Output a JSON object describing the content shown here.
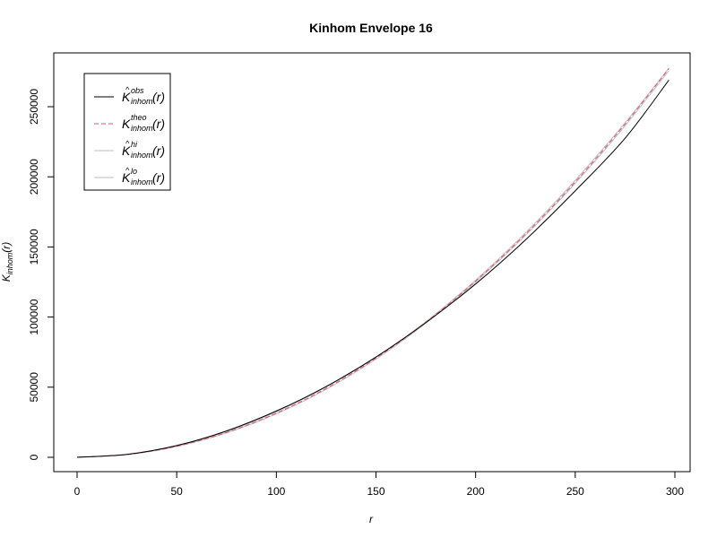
{
  "chart_data": {
    "type": "line",
    "title": "Kinhom Envelope 16",
    "xlabel": "r",
    "ylabel": {
      "main": "K",
      "sub": "inhom",
      "arg": "(r)"
    },
    "xlim": [
      0,
      300
    ],
    "ylim": [
      0,
      280000
    ],
    "x_ticks": [
      0,
      50,
      100,
      150,
      200,
      250,
      300
    ],
    "y_ticks": [
      0,
      50000,
      100000,
      150000,
      200000,
      250000
    ],
    "x_tick_labels": [
      "0",
      "50",
      "100",
      "150",
      "200",
      "250",
      "300"
    ],
    "y_tick_labels": [
      "0",
      "50000",
      "100000",
      "150000",
      "200000",
      "250000"
    ],
    "grid": false,
    "legend_position": "top-left",
    "x": [
      0,
      25,
      50,
      75,
      100,
      125,
      150,
      175,
      200,
      225,
      250,
      275,
      297
    ],
    "series": [
      {
        "key": "obs",
        "legend": {
          "main": "K",
          "hat": "^",
          "sup": "obs",
          "sub": "inhom",
          "arg": "(r)"
        },
        "color": "#000000",
        "dash": "solid",
        "values": [
          0,
          2100,
          8400,
          18800,
          33000,
          50500,
          71500,
          96000,
          123600,
          155000,
          190000,
          227500,
          269000
        ]
      },
      {
        "key": "theo",
        "legend": {
          "main": "K",
          "hat": "",
          "sup": "theo",
          "sub": "inhom",
          "arg": "(r)"
        },
        "color": "#df536b",
        "dash": "dashed",
        "values": [
          0,
          1963,
          7854,
          17671,
          31416,
          49087,
          70686,
          96211,
          125664,
          159043,
          196350,
          237583,
          277117
        ]
      },
      {
        "key": "hi",
        "legend": {
          "main": "K",
          "hat": "^",
          "sup": "hi",
          "sub": "inhom",
          "arg": "(r)"
        },
        "color": "#bebebe",
        "dash": "solid",
        "values": [
          0,
          2050,
          8100,
          18300,
          32300,
          50000,
          71300,
          96700,
          126300,
          160000,
          197500,
          238500,
          277500
        ]
      },
      {
        "key": "lo",
        "legend": {
          "main": "K",
          "hat": "^",
          "sup": "lo",
          "sub": "inhom",
          "arg": "(r)"
        },
        "color": "#bebebe",
        "dash": "solid",
        "values": [
          0,
          1900,
          7700,
          17400,
          31000,
          48500,
          70000,
          95600,
          125000,
          158200,
          195400,
          236400,
          275800
        ]
      }
    ]
  }
}
